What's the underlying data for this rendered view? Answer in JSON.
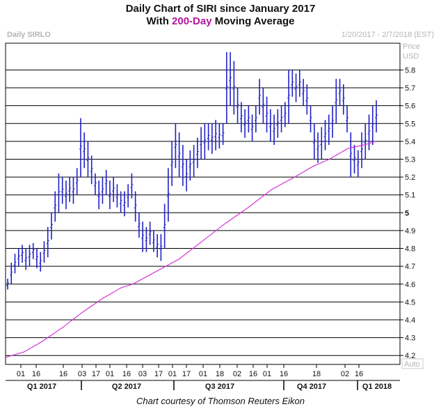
{
  "title": {
    "line1": "Daily Chart of SIRI since January 2017",
    "line2_pre": "With ",
    "line2_highlight": "200-Day",
    "line2_post": " Moving Average"
  },
  "header": {
    "symbol": "Daily SIRLO",
    "date_range": "1/20/2017 - 2/7/2018 (EST)"
  },
  "footer": "Chart courtesy of Thomson Reuters Eikon",
  "colors": {
    "price_bars": "#2020c8",
    "moving_average": "#d633d6",
    "grid": "#000000",
    "accent_title": "#b0179a"
  },
  "chart_data": {
    "type": "ohlc-bars-with-line",
    "y_axis": {
      "label_line1": "Price",
      "label_line2": "USD",
      "range": [
        4.15,
        5.95
      ],
      "ticks": [
        "4.2",
        "4.3",
        "4.4",
        "4.5",
        "4.6",
        "4.7",
        "4.8",
        "4.9",
        "5",
        "5.1",
        "5.2",
        "5.3",
        "5.4",
        "5.5",
        "5.6",
        "5.7",
        "5.8"
      ],
      "auto_label": "Auto"
    },
    "x_axis": {
      "day_labels": [
        "01",
        "16",
        "16",
        "03",
        "17",
        "01",
        "16",
        "03",
        "17",
        "01",
        "17",
        "01",
        "18",
        "02",
        "16",
        "01",
        "16",
        "18",
        "02",
        "16"
      ],
      "quarters": [
        "Q1 2017",
        "Q2 2017",
        "Q3 2017",
        "Q4 2017",
        "Q1 2018"
      ]
    },
    "series": [
      {
        "name": "SIRI",
        "type": "high-low bars",
        "ranges": [
          [
            4.57,
            4.63
          ],
          [
            4.6,
            4.72
          ],
          [
            4.66,
            4.77
          ],
          [
            4.7,
            4.8
          ],
          [
            4.72,
            4.82
          ],
          [
            4.68,
            4.8
          ],
          [
            4.7,
            4.82
          ],
          [
            4.74,
            4.83
          ],
          [
            4.69,
            4.8
          ],
          [
            4.67,
            4.78
          ],
          [
            4.72,
            4.84
          ],
          [
            4.75,
            4.92
          ],
          [
            4.85,
            5.0
          ],
          [
            4.95,
            5.12
          ],
          [
            5.0,
            5.22
          ],
          [
            5.05,
            5.2
          ],
          [
            5.02,
            5.18
          ],
          [
            5.06,
            5.2
          ],
          [
            5.05,
            5.2
          ],
          [
            5.1,
            5.25
          ],
          [
            5.2,
            5.53
          ],
          [
            5.25,
            5.45
          ],
          [
            5.2,
            5.4
          ],
          [
            5.16,
            5.32
          ],
          [
            5.1,
            5.22
          ],
          [
            5.02,
            5.18
          ],
          [
            5.05,
            5.2
          ],
          [
            5.1,
            5.24
          ],
          [
            5.02,
            5.18
          ],
          [
            5.06,
            5.2
          ],
          [
            5.03,
            5.16
          ],
          [
            5.0,
            5.12
          ],
          [
            4.98,
            5.12
          ],
          [
            5.03,
            5.16
          ],
          [
            5.08,
            5.22
          ],
          [
            4.95,
            5.12
          ],
          [
            4.86,
            5.0
          ],
          [
            4.78,
            4.95
          ],
          [
            4.78,
            4.92
          ],
          [
            4.82,
            4.95
          ],
          [
            4.78,
            4.9
          ],
          [
            4.75,
            4.88
          ],
          [
            4.73,
            4.88
          ],
          [
            4.8,
            5.05
          ],
          [
            4.95,
            5.25
          ],
          [
            5.15,
            5.4
          ],
          [
            5.25,
            5.5
          ],
          [
            5.2,
            5.45
          ],
          [
            5.15,
            5.38
          ],
          [
            5.12,
            5.3
          ],
          [
            5.18,
            5.35
          ],
          [
            5.2,
            5.38
          ],
          [
            5.25,
            5.42
          ],
          [
            5.3,
            5.48
          ],
          [
            5.3,
            5.5
          ],
          [
            5.35,
            5.5
          ],
          [
            5.33,
            5.5
          ],
          [
            5.35,
            5.52
          ],
          [
            5.36,
            5.5
          ],
          [
            5.38,
            5.5
          ],
          [
            5.5,
            5.9
          ],
          [
            5.6,
            5.9
          ],
          [
            5.55,
            5.85
          ],
          [
            5.5,
            5.7
          ],
          [
            5.45,
            5.62
          ],
          [
            5.42,
            5.58
          ],
          [
            5.45,
            5.6
          ],
          [
            5.4,
            5.55
          ],
          [
            5.45,
            5.6
          ],
          [
            5.55,
            5.75
          ],
          [
            5.5,
            5.7
          ],
          [
            5.45,
            5.65
          ],
          [
            5.4,
            5.58
          ],
          [
            5.38,
            5.55
          ],
          [
            5.42,
            5.58
          ],
          [
            5.45,
            5.6
          ],
          [
            5.48,
            5.62
          ],
          [
            5.5,
            5.8
          ],
          [
            5.65,
            5.8
          ],
          [
            5.62,
            5.78
          ],
          [
            5.65,
            5.8
          ],
          [
            5.6,
            5.75
          ],
          [
            5.55,
            5.72
          ],
          [
            5.45,
            5.6
          ],
          [
            5.3,
            5.5
          ],
          [
            5.28,
            5.45
          ],
          [
            5.3,
            5.48
          ],
          [
            5.35,
            5.52
          ],
          [
            5.38,
            5.55
          ],
          [
            5.42,
            5.6
          ],
          [
            5.5,
            5.75
          ],
          [
            5.6,
            5.75
          ],
          [
            5.55,
            5.72
          ],
          [
            5.45,
            5.6
          ],
          [
            5.2,
            5.45
          ],
          [
            5.22,
            5.38
          ],
          [
            5.2,
            5.35
          ],
          [
            5.25,
            5.45
          ],
          [
            5.3,
            5.5
          ],
          [
            5.35,
            5.55
          ],
          [
            5.38,
            5.6
          ],
          [
            5.45,
            5.63
          ]
        ]
      },
      {
        "name": "200-Day Moving Average",
        "type": "line",
        "points": [
          [
            0,
            4.19
          ],
          [
            8,
            4.22
          ],
          [
            16,
            4.28
          ],
          [
            25,
            4.36
          ],
          [
            33,
            4.44
          ],
          [
            42,
            4.52
          ],
          [
            50,
            4.58
          ],
          [
            55,
            4.6
          ],
          [
            65,
            4.67
          ],
          [
            75,
            4.74
          ],
          [
            85,
            4.84
          ],
          [
            95,
            4.94
          ],
          [
            105,
            5.03
          ],
          [
            115,
            5.13
          ],
          [
            125,
            5.2
          ],
          [
            133,
            5.26
          ],
          [
            140,
            5.3
          ],
          [
            148,
            5.36
          ],
          [
            155,
            5.38
          ],
          [
            160,
            5.4
          ]
        ]
      }
    ]
  }
}
